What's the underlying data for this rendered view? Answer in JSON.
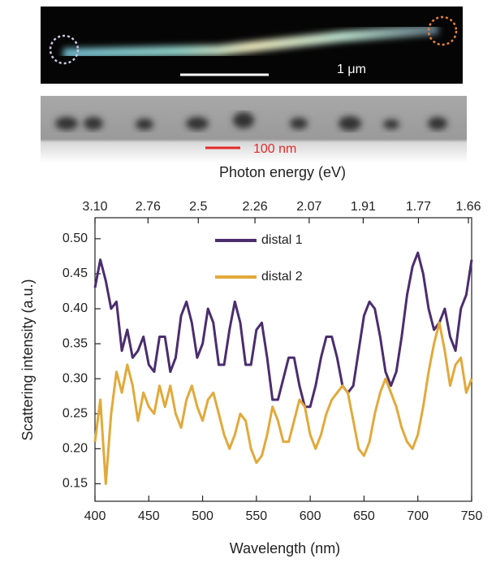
{
  "chart_data": {
    "type": "line",
    "image_label": "1 μm",
    "strip_label": "100 nm",
    "x2_label": "Photon energy (eV)",
    "xlabel": "Wavelength (nm)",
    "ylabel": "Scattering intensity (a.u.)",
    "xlim": [
      400,
      750
    ],
    "xticks": [
      400,
      450,
      500,
      550,
      600,
      650,
      700,
      750
    ],
    "x2ticks": [
      {
        "value": 3.1,
        "label": "3.10"
      },
      2.76,
      2.5,
      2.26,
      2.07,
      1.91,
      1.77,
      1.66
    ],
    "ylim": [
      0.125,
      0.53
    ],
    "yticks": [
      0.15,
      {
        "value": 0.2,
        "label": "0.20"
      },
      0.25,
      {
        "value": 0.3,
        "label": "0.30"
      },
      0.35,
      {
        "value": 0.4,
        "label": "0.40"
      },
      0.45,
      {
        "value": 0.5,
        "label": "0.50"
      }
    ],
    "x": [
      400,
      405,
      410,
      415,
      420,
      425,
      430,
      435,
      440,
      445,
      450,
      455,
      460,
      465,
      470,
      475,
      480,
      485,
      490,
      495,
      500,
      505,
      510,
      515,
      520,
      525,
      530,
      535,
      540,
      545,
      550,
      555,
      560,
      565,
      570,
      575,
      580,
      585,
      590,
      595,
      600,
      605,
      610,
      615,
      620,
      625,
      630,
      635,
      640,
      645,
      650,
      655,
      660,
      665,
      670,
      675,
      680,
      685,
      690,
      695,
      700,
      705,
      710,
      715,
      720,
      725,
      730,
      735,
      740,
      745,
      750
    ],
    "series": [
      {
        "name": "distal 1",
        "color": "#4b2d6f",
        "values": [
          0.43,
          0.47,
          0.44,
          0.4,
          0.41,
          0.34,
          0.37,
          0.33,
          0.34,
          0.36,
          0.32,
          0.31,
          0.36,
          0.36,
          0.31,
          0.33,
          0.39,
          0.41,
          0.38,
          0.33,
          0.35,
          0.4,
          0.38,
          0.32,
          0.32,
          0.37,
          0.41,
          0.38,
          0.32,
          0.32,
          0.37,
          0.38,
          0.33,
          0.27,
          0.27,
          0.3,
          0.33,
          0.33,
          0.29,
          0.26,
          0.26,
          0.29,
          0.33,
          0.36,
          0.36,
          0.33,
          0.29,
          0.28,
          0.29,
          0.34,
          0.39,
          0.41,
          0.4,
          0.36,
          0.31,
          0.29,
          0.31,
          0.36,
          0.42,
          0.46,
          0.48,
          0.45,
          0.4,
          0.37,
          0.38,
          0.4,
          0.36,
          0.34,
          0.4,
          0.42,
          0.47
        ]
      },
      {
        "name": "distal 2",
        "color": "#e2a93a",
        "values": [
          0.21,
          0.27,
          0.15,
          0.25,
          0.31,
          0.28,
          0.32,
          0.29,
          0.24,
          0.28,
          0.26,
          0.25,
          0.29,
          0.26,
          0.29,
          0.25,
          0.23,
          0.27,
          0.29,
          0.26,
          0.24,
          0.27,
          0.28,
          0.25,
          0.22,
          0.2,
          0.22,
          0.25,
          0.24,
          0.2,
          0.18,
          0.19,
          0.22,
          0.26,
          0.24,
          0.21,
          0.21,
          0.24,
          0.27,
          0.26,
          0.22,
          0.2,
          0.22,
          0.25,
          0.27,
          0.28,
          0.29,
          0.28,
          0.24,
          0.2,
          0.19,
          0.21,
          0.25,
          0.28,
          0.3,
          0.28,
          0.26,
          0.23,
          0.21,
          0.2,
          0.22,
          0.26,
          0.31,
          0.35,
          0.38,
          0.34,
          0.29,
          0.32,
          0.33,
          0.28,
          0.3
        ]
      }
    ]
  }
}
